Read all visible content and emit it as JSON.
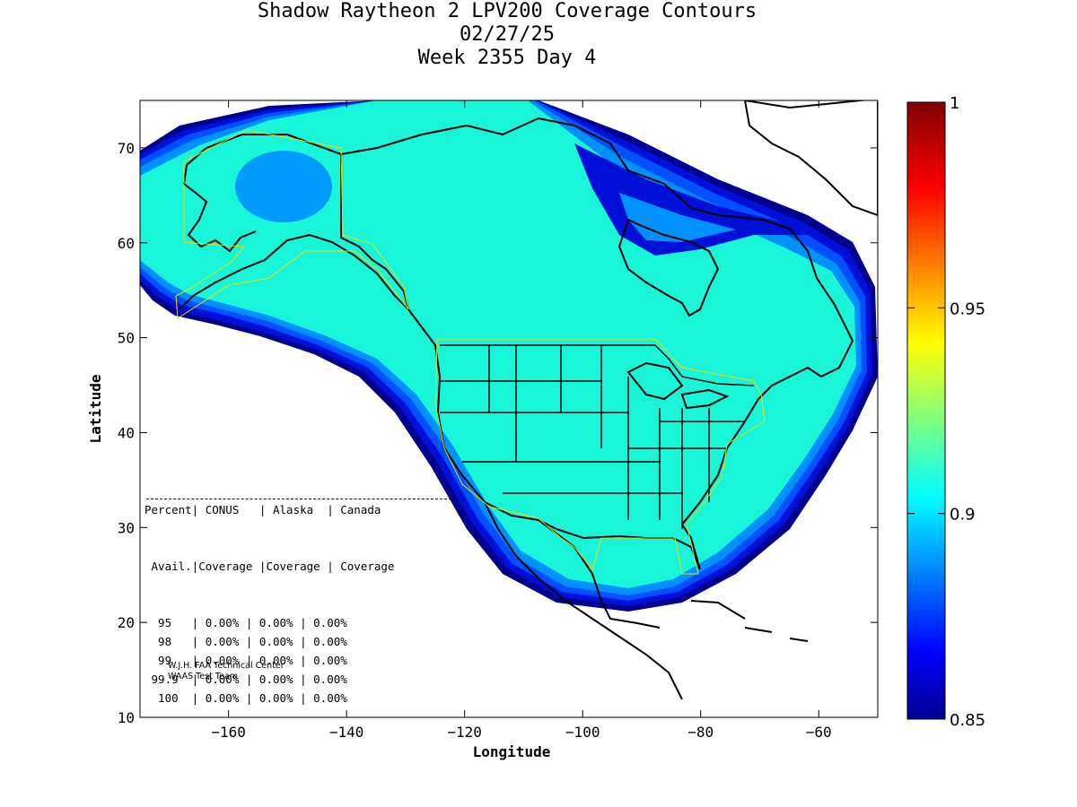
{
  "title": {
    "line1": "Shadow Raytheon 2 LPV200 Coverage Contours",
    "line2": "02/27/25",
    "line3": "Week 2355 Day 4"
  },
  "chart_data": {
    "type": "heatmap",
    "title": "Shadow Raytheon 2 LPV200 Coverage Contours",
    "subtitle": [
      "02/27/25",
      "Week 2355 Day 4"
    ],
    "xlabel": "Longitude",
    "ylabel": "Latitude",
    "xlim": [
      -175,
      -50
    ],
    "ylim": [
      10,
      75
    ],
    "xticks": [
      -160,
      -140,
      -120,
      -100,
      -80,
      -60
    ],
    "yticks": [
      10,
      20,
      30,
      40,
      50,
      60,
      70
    ],
    "colorbar": {
      "min": 0.85,
      "max": 1,
      "ticks": [
        0.85,
        0.9,
        0.95,
        1
      ],
      "tick_labels": [
        "0.85",
        "0.9",
        "0.95",
        "1"
      ],
      "colormap": "jet"
    },
    "dominant_value": 0.9,
    "coverage_region_color": "#19f5d8",
    "edge_colors": [
      "#0091ff",
      "#0050ff",
      "#0010d8",
      "#00008f"
    ]
  },
  "stats": {
    "header1": "Percent| CONUS   | Alaska  | Canada",
    "header2": " Avail.|Coverage |Coverage | Coverage",
    "rows": [
      {
        "pct": " 95  ",
        "conus": "0.00%",
        "alaska": "0.00%",
        "canada": "0.00%"
      },
      {
        "pct": " 98  ",
        "conus": "0.00%",
        "alaska": "0.00%",
        "canada": "0.00%"
      },
      {
        "pct": " 99  ",
        "conus": "0.00%",
        "alaska": "0.00%",
        "canada": "0.00%"
      },
      {
        "pct": "99.9 ",
        "conus": "0.00%",
        "alaska": "0.00%",
        "canada": "0.00%"
      },
      {
        "pct": " 100 ",
        "conus": "0.00%",
        "alaska": "0.00%",
        "canada": "0.00%"
      }
    ]
  },
  "credit": {
    "line1": "W.J.H. FAA Technical Center",
    "line2": "WAAS Test Team"
  }
}
